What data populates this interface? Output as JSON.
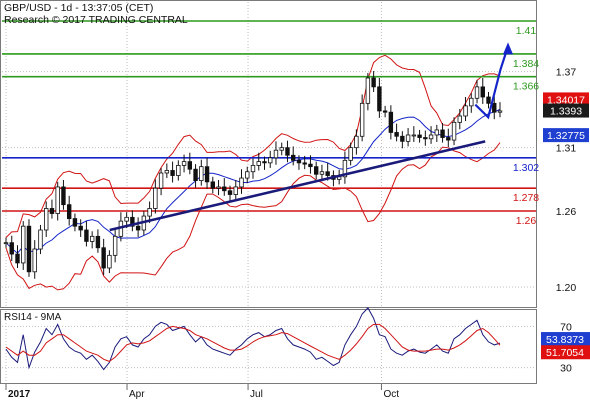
{
  "header": {
    "line1": "GBP/USD - 1d - 13:37:05 (CET)",
    "line2": "Research © 2017 TRADING CENTRAL"
  },
  "indicator_title": "RSI14 - 9MA",
  "colors": {
    "green": "#2e9a1f",
    "red": "#d11414",
    "blue": "#1424c8",
    "navy": "#1a1a7a",
    "price_tag_red": "#e01010",
    "price_tag_blue": "#1f3fd0",
    "price_tag_dark": "#1a1a1a",
    "grid": "#bfbfbf"
  },
  "chart_data": [
    {
      "type": "candlestick",
      "title": "GBP/USD - 1d",
      "y_ticks": [
        "1.37",
        "1.31",
        "1.26",
        "1.20"
      ],
      "ylim": [
        1.185,
        1.425
      ],
      "x_ticks": [
        "2017",
        "Apr",
        "Jul",
        "Oct"
      ],
      "levels": [
        {
          "label": "1.41",
          "value": 1.41,
          "color": "green"
        },
        {
          "label": "1.384",
          "value": 1.384,
          "color": "green"
        },
        {
          "label": "1.366",
          "value": 1.366,
          "color": "green"
        },
        {
          "label": "1.302",
          "value": 1.302,
          "color": "blue"
        },
        {
          "label": "1.278",
          "value": 1.278,
          "color": "red"
        },
        {
          "label": "1.26",
          "value": 1.26,
          "color": "red"
        }
      ],
      "trendline": {
        "from": [
          0.21,
          1.245
        ],
        "to": [
          0.97,
          1.315
        ]
      },
      "price_tags": [
        {
          "label": "1.34017",
          "value": 1.3402,
          "color": "price_tag_red"
        },
        {
          "label": "1.3393",
          "value": 1.3393,
          "color": "price_tag_dark"
        },
        {
          "label": "1.32775",
          "value": 1.3278,
          "color": "price_tag_blue"
        }
      ],
      "scenario_arrow": [
        [
          0.96,
          1.334
        ],
        [
          0.985,
          1.372
        ],
        [
          1.0,
          1.39
        ]
      ],
      "close_series": [
        1.235,
        1.226,
        1.219,
        1.248,
        1.212,
        1.23,
        1.245,
        1.262,
        1.258,
        1.279,
        1.265,
        1.254,
        1.248,
        1.245,
        1.236,
        1.24,
        1.231,
        1.215,
        1.225,
        1.24,
        1.252,
        1.255,
        1.248,
        1.245,
        1.256,
        1.262,
        1.278,
        1.29,
        1.292,
        1.288,
        1.296,
        1.299,
        1.293,
        1.284,
        1.295,
        1.283,
        1.278,
        1.279,
        1.276,
        1.273,
        1.279,
        1.286,
        1.291,
        1.296,
        1.299,
        1.298,
        1.302,
        1.308,
        1.31,
        1.304,
        1.3,
        1.298,
        1.297,
        1.295,
        1.289,
        1.291,
        1.288,
        1.285,
        1.287,
        1.3,
        1.31,
        1.319,
        1.345,
        1.365,
        1.358,
        1.339,
        1.338,
        1.322,
        1.319,
        1.315,
        1.32,
        1.32,
        1.318,
        1.317,
        1.32,
        1.324,
        1.318,
        1.316,
        1.33,
        1.335,
        1.343,
        1.349,
        1.358,
        1.35,
        1.345,
        1.338,
        1.339
      ]
    },
    {
      "type": "line",
      "title": "RSI14 - 9MA",
      "y_ticks": [
        "70",
        "30"
      ],
      "ylim": [
        15,
        85
      ],
      "series": [
        {
          "values": [
            48,
            40,
            35,
            62,
            30,
            45,
            55,
            68,
            62,
            72,
            58,
            50,
            46,
            44,
            38,
            42,
            36,
            28,
            35,
            50,
            58,
            60,
            52,
            50,
            58,
            62,
            70,
            74,
            72,
            66,
            68,
            70,
            62,
            55,
            60,
            52,
            48,
            46,
            44,
            42,
            48,
            52,
            58,
            62,
            64,
            60,
            62,
            66,
            68,
            58,
            52,
            50,
            48,
            45,
            38,
            40,
            36,
            32,
            35,
            52,
            62,
            70,
            82,
            88,
            78,
            62,
            60,
            48,
            44,
            42,
            46,
            48,
            45,
            44,
            48,
            52,
            46,
            44,
            58,
            62,
            68,
            72,
            76,
            62,
            55,
            52,
            53.8
          ]
        },
        {
          "values": [
            50,
            46,
            42,
            46,
            42,
            42,
            46,
            54,
            58,
            62,
            62,
            58,
            54,
            50,
            46,
            44,
            42,
            38,
            36,
            40,
            46,
            52,
            54,
            53,
            54,
            56,
            60,
            64,
            68,
            70,
            69,
            68,
            66,
            62,
            60,
            58,
            55,
            52,
            49,
            47,
            47,
            48,
            51,
            55,
            58,
            60,
            61,
            62,
            64,
            63,
            60,
            57,
            54,
            51,
            48,
            45,
            42,
            40,
            38,
            42,
            47,
            53,
            60,
            68,
            72,
            72,
            68,
            62,
            56,
            50,
            47,
            46,
            46,
            46,
            47,
            48,
            48,
            47,
            49,
            52,
            56,
            61,
            66,
            68,
            64,
            58,
            51.7
          ]
        }
      ],
      "price_tags": [
        {
          "label": "53.8373",
          "value": 53.84,
          "color": "price_tag_blue"
        },
        {
          "label": "51.7054",
          "value": 51.71,
          "color": "price_tag_red"
        }
      ]
    }
  ]
}
